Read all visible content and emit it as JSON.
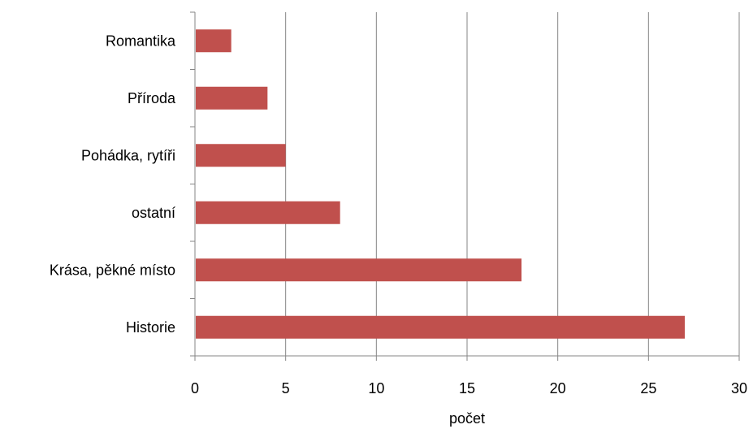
{
  "chart_data": {
    "type": "bar",
    "orientation": "horizontal",
    "categories": [
      "Romantika",
      "Příroda",
      "Pohádka, rytíři",
      "ostatní",
      "Krása, pěkné místo",
      "Historie"
    ],
    "values": [
      2,
      4,
      5,
      8,
      18,
      27
    ],
    "xlabel": "počet",
    "ylabel": "",
    "xlim": [
      0,
      30
    ],
    "xticks": [
      "0",
      "5",
      "10",
      "15",
      "20",
      "25",
      "30"
    ],
    "grid": "vertical",
    "legend": "none",
    "colors": {
      "bar": "#c0504d",
      "grid": "#868686",
      "axis": "#868686"
    }
  }
}
